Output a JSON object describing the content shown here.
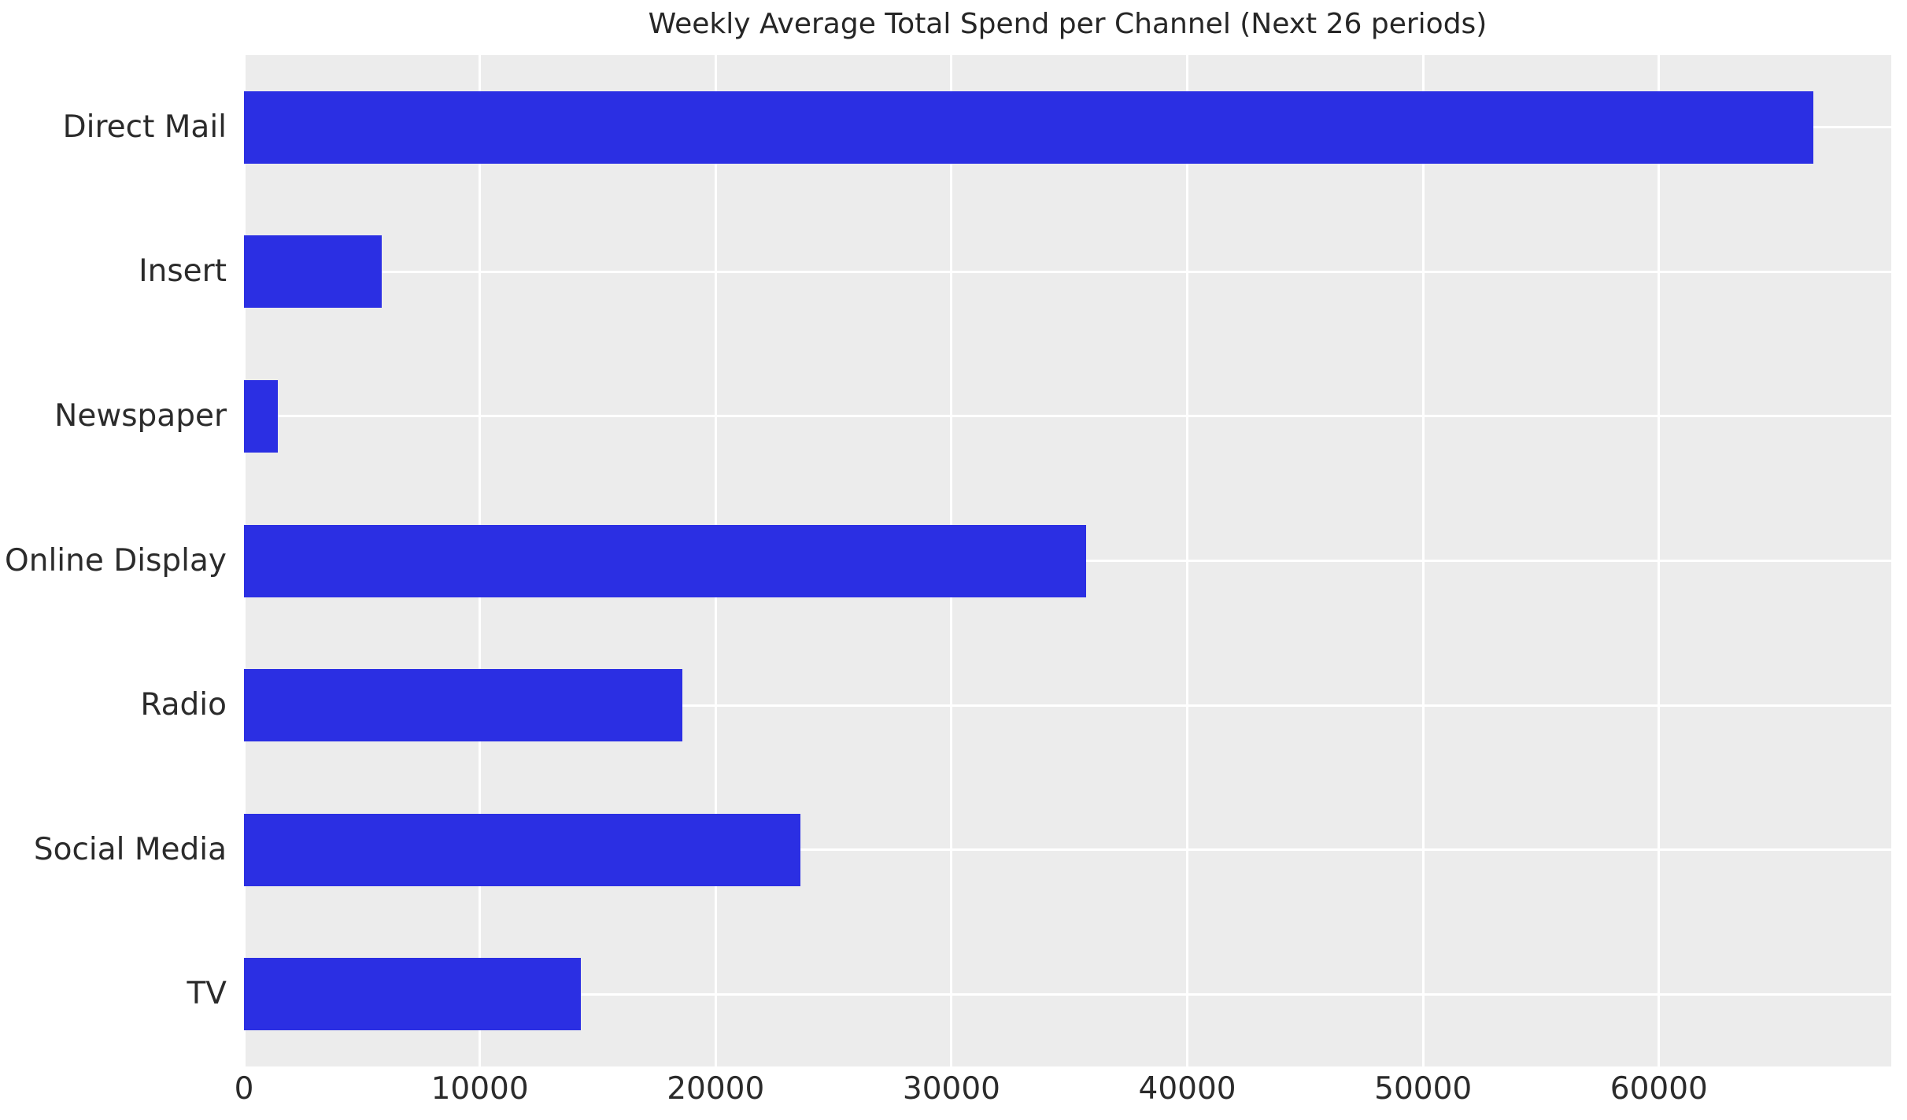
{
  "chart": {
    "title": "Weekly Average Total Spend per Channel (Next 26 periods)"
  },
  "chart_data": {
    "type": "bar",
    "orientation": "horizontal",
    "title": "Weekly Average Total Spend per Channel (Next 26 periods)",
    "categories": [
      "Direct Mail",
      "Insert",
      "Newspaper",
      "Online Display",
      "Radio",
      "Social Media",
      "TV"
    ],
    "values": [
      66550,
      5850,
      1450,
      35700,
      18600,
      23600,
      14300
    ],
    "xlabel": "",
    "ylabel": "",
    "xlim": [
      0,
      69850
    ],
    "xticks": [
      0,
      10000,
      20000,
      30000,
      40000,
      50000,
      60000
    ],
    "xtick_labels": [
      "0",
      "10000",
      "20000",
      "30000",
      "40000",
      "50000",
      "60000"
    ],
    "grid": true,
    "legend": false,
    "colors": {
      "bar": "#2b2fe3",
      "plot_background": "#ececec",
      "figure_background": "#ffffff",
      "gridline": "#ffffff",
      "text": "#2b2b2b",
      "title_text": "#262626"
    }
  }
}
